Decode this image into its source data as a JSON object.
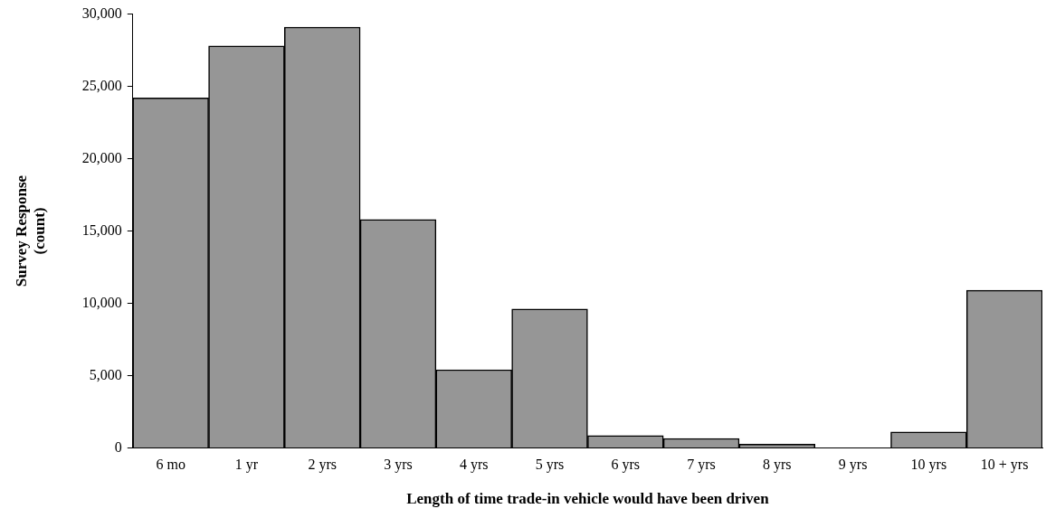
{
  "chart_data": {
    "type": "bar",
    "xlabel": "Length of time trade-in vehicle would have been driven",
    "ylabel": "Survey Response\n(count)",
    "categories": [
      "6 mo",
      "1 yr",
      "2 yrs",
      "3 yrs",
      "4 yrs",
      "5 yrs",
      "6 yrs",
      "7 yrs",
      "8 yrs",
      "9 yrs",
      "10 yrs",
      "10 + yrs"
    ],
    "values": [
      24200,
      27800,
      29100,
      15800,
      5400,
      9600,
      850,
      650,
      250,
      0,
      1100,
      10900
    ],
    "color": "#969696",
    "ylim": [
      0,
      30000
    ],
    "yticks": [
      {
        "value": 0,
        "label": "0"
      },
      {
        "value": 5000,
        "label": "5,000"
      },
      {
        "value": 10000,
        "label": "10,000"
      },
      {
        "value": 15000,
        "label": "15,000"
      },
      {
        "value": 20000,
        "label": "20,000"
      },
      {
        "value": 25000,
        "label": "25,000"
      },
      {
        "value": 30000,
        "label": "30,000"
      }
    ],
    "grid": false,
    "legend": false
  }
}
